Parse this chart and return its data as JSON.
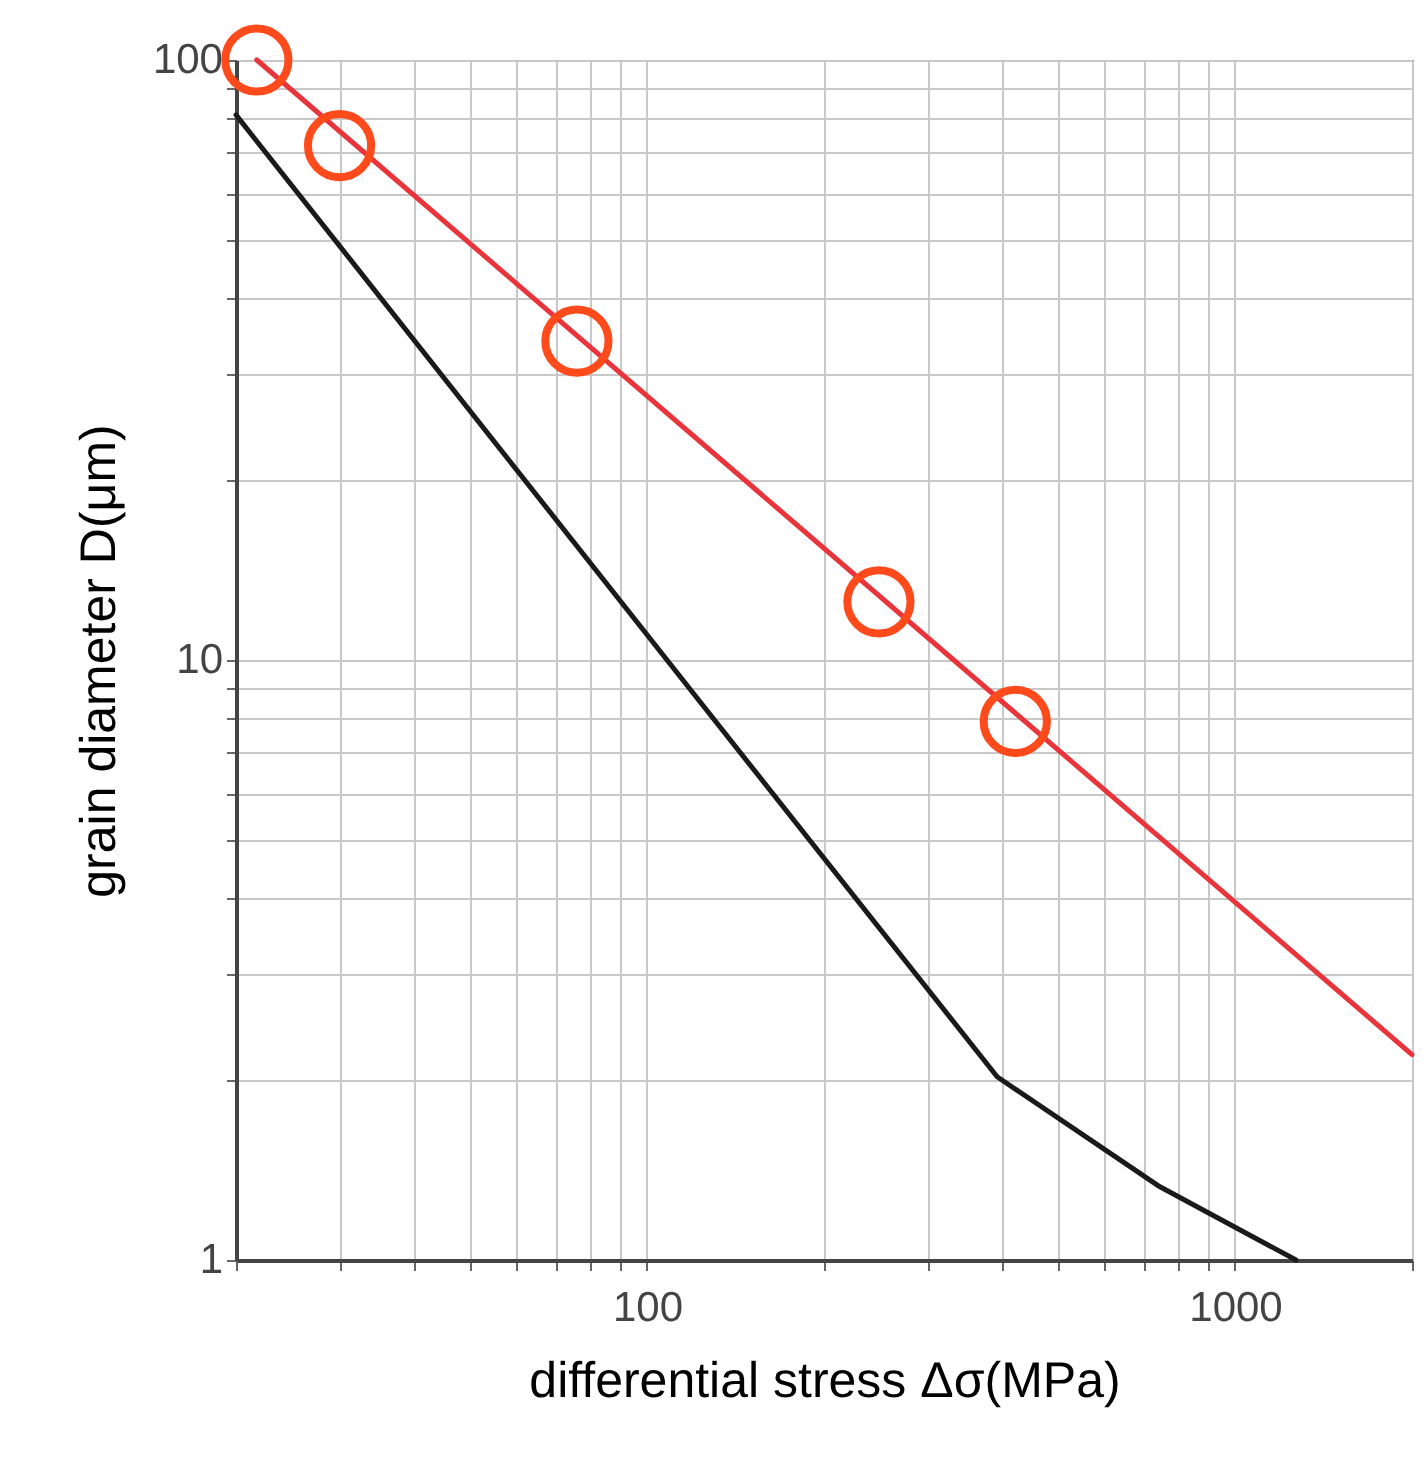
{
  "chart_data": {
    "type": "line",
    "xlabel": "differential stress Δσ(MPa)",
    "ylabel": "grain diameter D(μm)",
    "log": "xy",
    "grid": true,
    "xlim": [
      20,
      2000
    ],
    "ylim": [
      1,
      100
    ],
    "xticks": [
      {
        "value": 20,
        "label": null
      },
      {
        "value": 30,
        "label": null
      },
      {
        "value": 40,
        "label": null
      },
      {
        "value": 50,
        "label": null
      },
      {
        "value": 60,
        "label": null
      },
      {
        "value": 70,
        "label": null
      },
      {
        "value": 80,
        "label": null
      },
      {
        "value": 90,
        "label": null
      },
      100,
      {
        "value": 200,
        "label": null
      },
      {
        "value": 300,
        "label": null
      },
      {
        "value": 400,
        "label": null
      },
      {
        "value": 500,
        "label": null
      },
      {
        "value": 600,
        "label": null
      },
      {
        "value": 700,
        "label": null
      },
      {
        "value": 800,
        "label": null
      },
      {
        "value": 900,
        "label": null
      },
      1000,
      {
        "value": 2000,
        "label": null
      }
    ],
    "yticks": [
      1,
      {
        "value": 2,
        "label": null
      },
      {
        "value": 3,
        "label": null
      },
      {
        "value": 4,
        "label": null
      },
      {
        "value": 5,
        "label": null
      },
      {
        "value": 6,
        "label": null
      },
      {
        "value": 7,
        "label": null
      },
      {
        "value": 8,
        "label": null
      },
      {
        "value": 9,
        "label": null
      },
      10,
      {
        "value": 20,
        "label": null
      },
      {
        "value": 30,
        "label": null
      },
      {
        "value": 40,
        "label": null
      },
      {
        "value": 50,
        "label": null
      },
      {
        "value": 60,
        "label": null
      },
      {
        "value": 70,
        "label": null
      },
      {
        "value": 80,
        "label": null
      },
      {
        "value": 90,
        "label": null
      },
      100
    ],
    "series": [
      {
        "color": "#e8343a",
        "marker": "none",
        "line_style": "solid",
        "x": [
          21.7,
          2000
        ],
        "values": [
          100,
          2.2
        ]
      },
      {
        "color": "#1a1a1a",
        "marker": "none",
        "line_style": "solid",
        "x": [
          20,
          121,
          394,
          740,
          1270
        ],
        "values": [
          81,
          8.7,
          2.02,
          1.33,
          1
        ]
      },
      {
        "type": "scatter",
        "color": "#ff4a1c",
        "marker": "circle",
        "x": [
          21.7,
          30,
          76,
          248,
          423
        ],
        "values": [
          100,
          72,
          34,
          12.5,
          7.9
        ]
      }
    ]
  }
}
